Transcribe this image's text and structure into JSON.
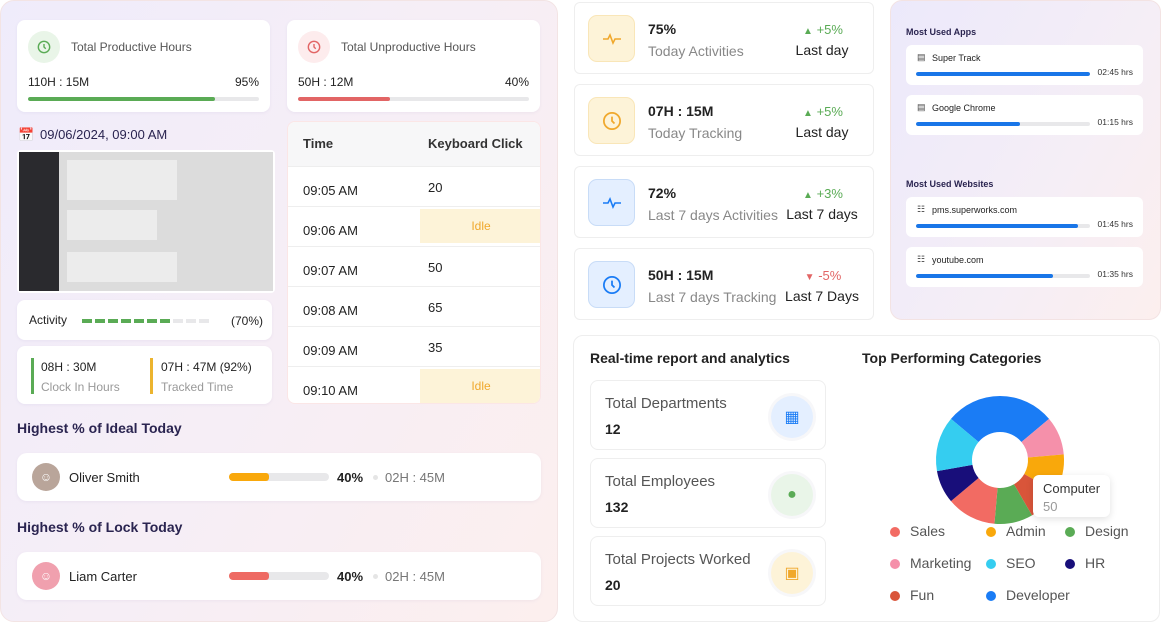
{
  "productive": {
    "title": "Total Productive Hours",
    "value": "110H : 15M",
    "percent_label": "95%",
    "percent": 95,
    "color": "#5aab55"
  },
  "unproductive": {
    "title": "Total Unproductive Hours",
    "value": "50H : 12M",
    "percent_label": "40%",
    "percent": 40,
    "color": "#e26565"
  },
  "screenshot": {
    "datetime": "09/06/2024, 09:00 AM"
  },
  "activity": {
    "label": "Activity",
    "percent_label": "(70%)",
    "segments_filled": 7,
    "segments_total": 10
  },
  "clock": {
    "clock_in_value": "08H : 30M",
    "clock_in_label": "Clock In Hours",
    "tracked_value": "07H : 47M (92%)",
    "tracked_label": "Tracked Time"
  },
  "table": {
    "headers": [
      "Time",
      "Keyboard Click"
    ],
    "rows": [
      {
        "time": "09:05 AM",
        "clicks": "20"
      },
      {
        "time": "09:06 AM",
        "clicks": "Idle"
      },
      {
        "time": "09:07 AM",
        "clicks": "50"
      },
      {
        "time": "09:08 AM",
        "clicks": "65"
      },
      {
        "time": "09:09 AM",
        "clicks": "35"
      },
      {
        "time": "09:10 AM",
        "clicks": "Idle"
      }
    ]
  },
  "ideal": {
    "title": "Highest % of Ideal Today",
    "name": "Oliver Smith",
    "percent_label": "40%",
    "percent": 40,
    "time": "02H : 45M",
    "color": "#f9a80b"
  },
  "lock": {
    "title": "Highest % of Lock Today",
    "name": "Liam Carter",
    "percent_label": "40%",
    "percent": 40,
    "time": "02H : 45M",
    "color": "#ee6a63"
  },
  "stats": [
    {
      "value": "75%",
      "label": "Today Activities",
      "delta": "+5%",
      "direction": "up",
      "period": "Last day",
      "icon": "activity-icon",
      "tone": "amber"
    },
    {
      "value": "07H : 15M",
      "label": "Today Tracking",
      "delta": "+5%",
      "direction": "up",
      "period": "Last day",
      "icon": "clock-icon",
      "tone": "amber"
    },
    {
      "value": "72%",
      "label": "Last 7 days Activities",
      "delta": "+3%",
      "direction": "up",
      "period": "Last 7 days",
      "icon": "activity-icon",
      "tone": "blue"
    },
    {
      "value": "50H : 15M",
      "label": "Last 7 days Tracking",
      "delta": "-5%",
      "direction": "down",
      "period": "Last 7 Days",
      "icon": "clock-icon",
      "tone": "blue"
    }
  ],
  "apps": {
    "title": "Most Used Apps",
    "items": [
      {
        "name": "Super Track",
        "time": "02:45 hrs",
        "fraction": 1.0,
        "icon": "laptop-icon"
      },
      {
        "name": "Google Chrome",
        "time": "01:15 hrs",
        "fraction": 0.6,
        "icon": "laptop-icon"
      }
    ]
  },
  "websites": {
    "title": "Most Used Websites",
    "items": [
      {
        "name": "pms.superworks.com",
        "time": "01:45 hrs",
        "fraction": 0.93,
        "icon": "globe-icon"
      },
      {
        "name": "youtube.com",
        "time": "01:35 hrs",
        "fraction": 0.79,
        "icon": "globe-icon"
      }
    ]
  },
  "report": {
    "title": "Real-time report and analytics",
    "items": [
      {
        "label": "Total Departments",
        "value": "12",
        "icon": "building-icon"
      },
      {
        "label": "Total Employees",
        "value": "132",
        "icon": "user-icon"
      },
      {
        "label": "Total Projects Worked",
        "value": "20",
        "icon": "briefcase-icon"
      }
    ]
  },
  "chart_data": {
    "type": "pie",
    "title": "Top Performing Categories",
    "categories": [
      "Developer",
      "Marketing",
      "Admin",
      "Fun",
      "Design",
      "Sales",
      "HR",
      "SEO"
    ],
    "values": [
      100,
      35,
      35,
      30,
      35,
      45,
      30,
      50
    ],
    "colors": [
      "#1a7cf5",
      "#f590aa",
      "#f9a80b",
      "#d9553a",
      "#5aab55",
      "#f26b63",
      "#180e7a",
      "#35cdf0"
    ],
    "legend_order": [
      "Sales",
      "Admin",
      "Design",
      "Marketing",
      "SEO",
      "HR",
      "Fun",
      "Developer"
    ],
    "legend_placement": "bottom",
    "tooltip": {
      "label": "Computer",
      "value": "50"
    }
  }
}
